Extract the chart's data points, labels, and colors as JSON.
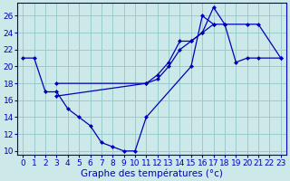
{
  "xlabel": "Graphe des températures (°c)",
  "bg_color": "#cce8e8",
  "line_color": "#0000bb",
  "grid_color": "#99cccc",
  "ylim": [
    9.5,
    27.5
  ],
  "xlim": [
    -0.5,
    23.5
  ],
  "yticks": [
    10,
    12,
    14,
    16,
    18,
    20,
    22,
    24,
    26
  ],
  "xticks": [
    0,
    1,
    2,
    3,
    4,
    5,
    6,
    7,
    8,
    9,
    10,
    11,
    12,
    13,
    14,
    15,
    16,
    17,
    18,
    19,
    20,
    21,
    22,
    23
  ],
  "series": [
    {
      "x": [
        0,
        1,
        2,
        3,
        4,
        5,
        6,
        7,
        8,
        9,
        10,
        11,
        15,
        16,
        17
      ],
      "y": [
        21,
        21,
        17,
        17,
        15,
        14,
        13,
        11,
        10.5,
        10,
        10,
        14,
        20,
        26,
        25
      ]
    },
    {
      "x": [
        3,
        11,
        12,
        13,
        14,
        15,
        16,
        17,
        18,
        19,
        20,
        21,
        23
      ],
      "y": [
        18,
        18,
        19,
        20.5,
        23,
        23,
        24,
        25,
        25,
        20.5,
        21,
        21,
        21
      ]
    },
    {
      "x": [
        3,
        11,
        12,
        13,
        14,
        15,
        16,
        17,
        18,
        20,
        21,
        23
      ],
      "y": [
        16.5,
        18,
        18.5,
        20,
        22,
        23,
        24,
        27,
        25,
        25,
        25,
        21
      ]
    }
  ],
  "xlabel_fontsize": 7.5,
  "tick_labelsize": 6.5
}
